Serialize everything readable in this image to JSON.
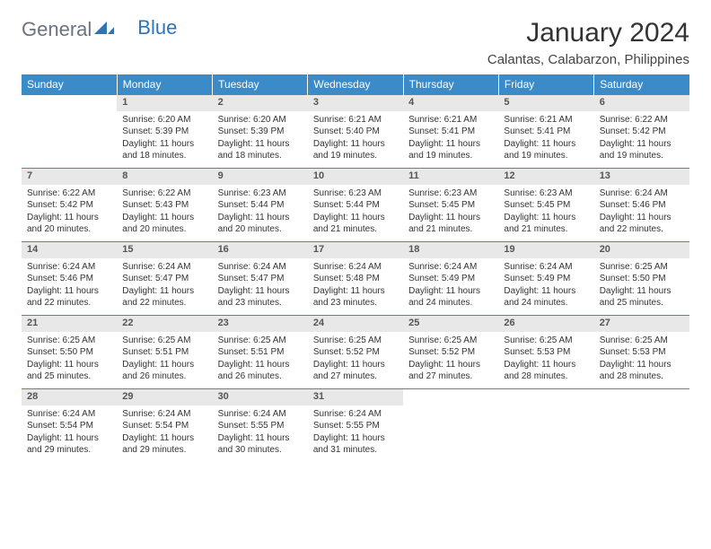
{
  "brand": {
    "part1": "General",
    "part2": "Blue"
  },
  "title": "January 2024",
  "location": "Calantas, Calabarzon, Philippines",
  "colors": {
    "header_bg": "#3b8bc9",
    "header_text": "#ffffff",
    "daynum_bg": "#e8e8e8",
    "border": "#3b8bc9",
    "brand_gray": "#6b7280",
    "brand_blue": "#2e75b6"
  },
  "weekdays": [
    "Sunday",
    "Monday",
    "Tuesday",
    "Wednesday",
    "Thursday",
    "Friday",
    "Saturday"
  ],
  "weeks": [
    {
      "nums": [
        "",
        "1",
        "2",
        "3",
        "4",
        "5",
        "6"
      ],
      "cells": [
        null,
        {
          "sunrise": "Sunrise: 6:20 AM",
          "sunset": "Sunset: 5:39 PM",
          "day1": "Daylight: 11 hours",
          "day2": "and 18 minutes."
        },
        {
          "sunrise": "Sunrise: 6:20 AM",
          "sunset": "Sunset: 5:39 PM",
          "day1": "Daylight: 11 hours",
          "day2": "and 18 minutes."
        },
        {
          "sunrise": "Sunrise: 6:21 AM",
          "sunset": "Sunset: 5:40 PM",
          "day1": "Daylight: 11 hours",
          "day2": "and 19 minutes."
        },
        {
          "sunrise": "Sunrise: 6:21 AM",
          "sunset": "Sunset: 5:41 PM",
          "day1": "Daylight: 11 hours",
          "day2": "and 19 minutes."
        },
        {
          "sunrise": "Sunrise: 6:21 AM",
          "sunset": "Sunset: 5:41 PM",
          "day1": "Daylight: 11 hours",
          "day2": "and 19 minutes."
        },
        {
          "sunrise": "Sunrise: 6:22 AM",
          "sunset": "Sunset: 5:42 PM",
          "day1": "Daylight: 11 hours",
          "day2": "and 19 minutes."
        }
      ]
    },
    {
      "nums": [
        "7",
        "8",
        "9",
        "10",
        "11",
        "12",
        "13"
      ],
      "cells": [
        {
          "sunrise": "Sunrise: 6:22 AM",
          "sunset": "Sunset: 5:42 PM",
          "day1": "Daylight: 11 hours",
          "day2": "and 20 minutes."
        },
        {
          "sunrise": "Sunrise: 6:22 AM",
          "sunset": "Sunset: 5:43 PM",
          "day1": "Daylight: 11 hours",
          "day2": "and 20 minutes."
        },
        {
          "sunrise": "Sunrise: 6:23 AM",
          "sunset": "Sunset: 5:44 PM",
          "day1": "Daylight: 11 hours",
          "day2": "and 20 minutes."
        },
        {
          "sunrise": "Sunrise: 6:23 AM",
          "sunset": "Sunset: 5:44 PM",
          "day1": "Daylight: 11 hours",
          "day2": "and 21 minutes."
        },
        {
          "sunrise": "Sunrise: 6:23 AM",
          "sunset": "Sunset: 5:45 PM",
          "day1": "Daylight: 11 hours",
          "day2": "and 21 minutes."
        },
        {
          "sunrise": "Sunrise: 6:23 AM",
          "sunset": "Sunset: 5:45 PM",
          "day1": "Daylight: 11 hours",
          "day2": "and 21 minutes."
        },
        {
          "sunrise": "Sunrise: 6:24 AM",
          "sunset": "Sunset: 5:46 PM",
          "day1": "Daylight: 11 hours",
          "day2": "and 22 minutes."
        }
      ]
    },
    {
      "nums": [
        "14",
        "15",
        "16",
        "17",
        "18",
        "19",
        "20"
      ],
      "cells": [
        {
          "sunrise": "Sunrise: 6:24 AM",
          "sunset": "Sunset: 5:46 PM",
          "day1": "Daylight: 11 hours",
          "day2": "and 22 minutes."
        },
        {
          "sunrise": "Sunrise: 6:24 AM",
          "sunset": "Sunset: 5:47 PM",
          "day1": "Daylight: 11 hours",
          "day2": "and 22 minutes."
        },
        {
          "sunrise": "Sunrise: 6:24 AM",
          "sunset": "Sunset: 5:47 PM",
          "day1": "Daylight: 11 hours",
          "day2": "and 23 minutes."
        },
        {
          "sunrise": "Sunrise: 6:24 AM",
          "sunset": "Sunset: 5:48 PM",
          "day1": "Daylight: 11 hours",
          "day2": "and 23 minutes."
        },
        {
          "sunrise": "Sunrise: 6:24 AM",
          "sunset": "Sunset: 5:49 PM",
          "day1": "Daylight: 11 hours",
          "day2": "and 24 minutes."
        },
        {
          "sunrise": "Sunrise: 6:24 AM",
          "sunset": "Sunset: 5:49 PM",
          "day1": "Daylight: 11 hours",
          "day2": "and 24 minutes."
        },
        {
          "sunrise": "Sunrise: 6:25 AM",
          "sunset": "Sunset: 5:50 PM",
          "day1": "Daylight: 11 hours",
          "day2": "and 25 minutes."
        }
      ]
    },
    {
      "nums": [
        "21",
        "22",
        "23",
        "24",
        "25",
        "26",
        "27"
      ],
      "cells": [
        {
          "sunrise": "Sunrise: 6:25 AM",
          "sunset": "Sunset: 5:50 PM",
          "day1": "Daylight: 11 hours",
          "day2": "and 25 minutes."
        },
        {
          "sunrise": "Sunrise: 6:25 AM",
          "sunset": "Sunset: 5:51 PM",
          "day1": "Daylight: 11 hours",
          "day2": "and 26 minutes."
        },
        {
          "sunrise": "Sunrise: 6:25 AM",
          "sunset": "Sunset: 5:51 PM",
          "day1": "Daylight: 11 hours",
          "day2": "and 26 minutes."
        },
        {
          "sunrise": "Sunrise: 6:25 AM",
          "sunset": "Sunset: 5:52 PM",
          "day1": "Daylight: 11 hours",
          "day2": "and 27 minutes."
        },
        {
          "sunrise": "Sunrise: 6:25 AM",
          "sunset": "Sunset: 5:52 PM",
          "day1": "Daylight: 11 hours",
          "day2": "and 27 minutes."
        },
        {
          "sunrise": "Sunrise: 6:25 AM",
          "sunset": "Sunset: 5:53 PM",
          "day1": "Daylight: 11 hours",
          "day2": "and 28 minutes."
        },
        {
          "sunrise": "Sunrise: 6:25 AM",
          "sunset": "Sunset: 5:53 PM",
          "day1": "Daylight: 11 hours",
          "day2": "and 28 minutes."
        }
      ]
    },
    {
      "nums": [
        "28",
        "29",
        "30",
        "31",
        "",
        "",
        ""
      ],
      "cells": [
        {
          "sunrise": "Sunrise: 6:24 AM",
          "sunset": "Sunset: 5:54 PM",
          "day1": "Daylight: 11 hours",
          "day2": "and 29 minutes."
        },
        {
          "sunrise": "Sunrise: 6:24 AM",
          "sunset": "Sunset: 5:54 PM",
          "day1": "Daylight: 11 hours",
          "day2": "and 29 minutes."
        },
        {
          "sunrise": "Sunrise: 6:24 AM",
          "sunset": "Sunset: 5:55 PM",
          "day1": "Daylight: 11 hours",
          "day2": "and 30 minutes."
        },
        {
          "sunrise": "Sunrise: 6:24 AM",
          "sunset": "Sunset: 5:55 PM",
          "day1": "Daylight: 11 hours",
          "day2": "and 31 minutes."
        },
        null,
        null,
        null
      ]
    }
  ]
}
